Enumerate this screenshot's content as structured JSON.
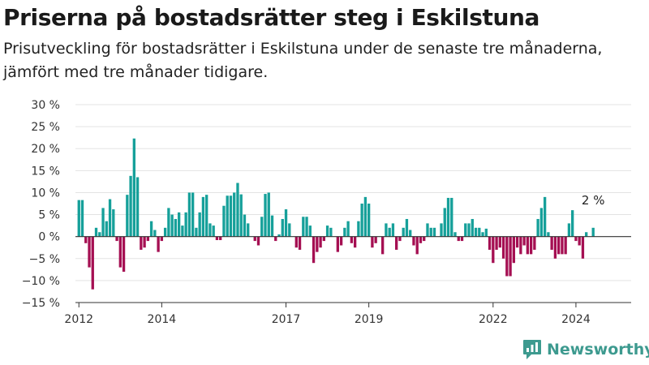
{
  "title": "Priserna på bostadsrätter steg i Eskilstuna",
  "subtitle": "Prisutveckling för bostadsrätter i Eskilstuna under de senaste tre månaderna, jämfört med tre månader tidigare.",
  "brand": {
    "name": "Newsworthy",
    "logo_icon": "newsworthy-logo-icon"
  },
  "colors": {
    "positive": "#16a09a",
    "negative": "#a50f52",
    "grid": "#e3e3e3",
    "axis": "#333333",
    "brand": "#3d9a8f"
  },
  "chart_data": {
    "type": "bar",
    "title": "Priserna på bostadsrätter steg i Eskilstuna",
    "subtitle": "Prisutveckling för bostadsrätter i Eskilstuna under de senaste tre månaderna, jämfört med tre månader tidigare.",
    "xlabel": "",
    "ylabel": "",
    "unit": "%",
    "ylim": [
      -15,
      30
    ],
    "yticks": [
      -15,
      -10,
      -5,
      0,
      5,
      10,
      15,
      20,
      25,
      30
    ],
    "ytick_labels": [
      "−15 %",
      "−10 %",
      "−5 %",
      "0 %",
      "5 %",
      "10 %",
      "15 %",
      "20 %",
      "25 %",
      "30 %"
    ],
    "xrange": [
      "2011-12",
      "2025-05"
    ],
    "xticks": [
      {
        "label": "2012",
        "date": "2012-01"
      },
      {
        "label": "2014",
        "date": "2014-01"
      },
      {
        "label": "2017",
        "date": "2017-01"
      },
      {
        "label": "2019",
        "date": "2019-01"
      },
      {
        "label": "2022",
        "date": "2022-01"
      },
      {
        "label": "2024",
        "date": "2024-01"
      }
    ],
    "grid": true,
    "legend": "none",
    "start_month": "2012-01",
    "frequency": "monthly",
    "values": [
      8.3,
      8.3,
      -1.5,
      -7,
      -12,
      2,
      1,
      6.5,
      3.5,
      8.5,
      6.2,
      -1,
      -7,
      -8,
      9.5,
      13.8,
      22.3,
      13.5,
      -3,
      -2.5,
      -1,
      3.5,
      1.5,
      -3.5,
      -1,
      2,
      6.5,
      5,
      4,
      5.5,
      2.5,
      5.5,
      10,
      10,
      2,
      5.5,
      9,
      9.5,
      3,
      2.5,
      -0.8,
      -0.8,
      7,
      9.3,
      9.3,
      10,
      12.2,
      9.6,
      5,
      3,
      0,
      -1,
      -2,
      4.5,
      9.7,
      10,
      4.8,
      -1,
      0.5,
      4,
      6.2,
      3,
      0,
      -2.5,
      -3,
      4.5,
      4.5,
      2.5,
      -6,
      -3.5,
      -2.5,
      -1,
      2.5,
      2,
      0,
      -3.5,
      -2,
      2,
      3.5,
      -1.5,
      -2.5,
      3.5,
      7.5,
      9,
      7.5,
      -2.5,
      -1.5,
      0,
      -4,
      3,
      2,
      3,
      -3,
      -1,
      2,
      4,
      1.5,
      -2,
      -4,
      -1.5,
      -1,
      3,
      2,
      2,
      0,
      3,
      6.5,
      8.8,
      8.8,
      1,
      -1,
      -1,
      3,
      3,
      4,
      2,
      2,
      1,
      1.8,
      -3,
      -6,
      -3,
      -2.5,
      -5,
      -9,
      -9,
      -6,
      -2.5,
      -4,
      -2,
      -4,
      -4,
      -3,
      4,
      6.5,
      9,
      1,
      -3,
      -5,
      -4,
      -4,
      -4,
      3,
      6,
      -1,
      -2,
      -5,
      1,
      0,
      2
    ],
    "annotations": [
      {
        "text": "2 %",
        "target": "last"
      }
    ]
  }
}
